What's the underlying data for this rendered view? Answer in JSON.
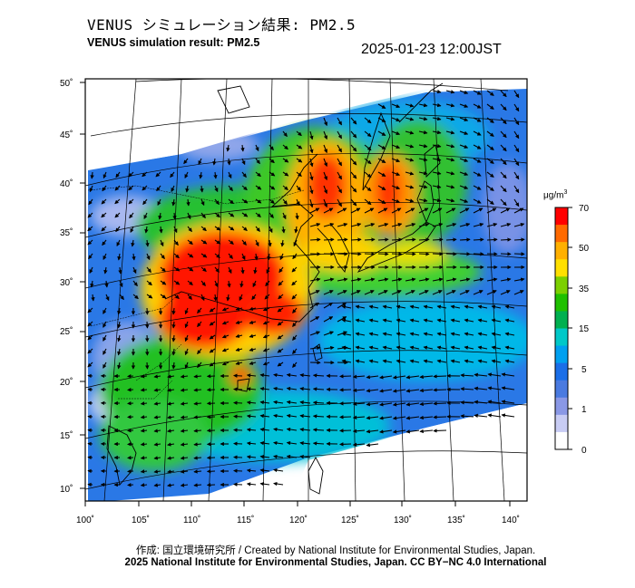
{
  "title_jp": "VENUS シミュレーション結果: PM2.5",
  "title_en": "VENUS simulation result: PM2.5",
  "timestamp": "2025-01-23 12:00JST",
  "units": {
    "base": "μg/m",
    "exp": "3"
  },
  "colorbar": {
    "ticks": [
      "70",
      "50",
      "35",
      "15",
      "5",
      "1",
      "0"
    ],
    "colors": [
      "#ff0000",
      "#ff6a00",
      "#ffb000",
      "#ffe000",
      "#7cd000",
      "#1fc000",
      "#00b050",
      "#00c8c8",
      "#00a0f0",
      "#1a6ee8",
      "#4a7ae0",
      "#8a98e6",
      "#c8ccf4",
      "#ffffff"
    ]
  },
  "lat_labels": [
    "50˚",
    "45˚",
    "40˚",
    "35˚",
    "30˚",
    "25˚",
    "20˚",
    "15˚",
    "10˚"
  ],
  "lon_labels": [
    "100˚",
    "105˚",
    "110˚",
    "115˚",
    "120˚",
    "125˚",
    "130˚",
    "135˚",
    "140˚"
  ],
  "credit_line1": "作成: 国立環境研究所 / Created by National Institute for Environmental Studies, Japan.",
  "credit_line2": "2025 National Institute for Environmental Studies, Japan. CC BY−NC 4.0 International"
}
